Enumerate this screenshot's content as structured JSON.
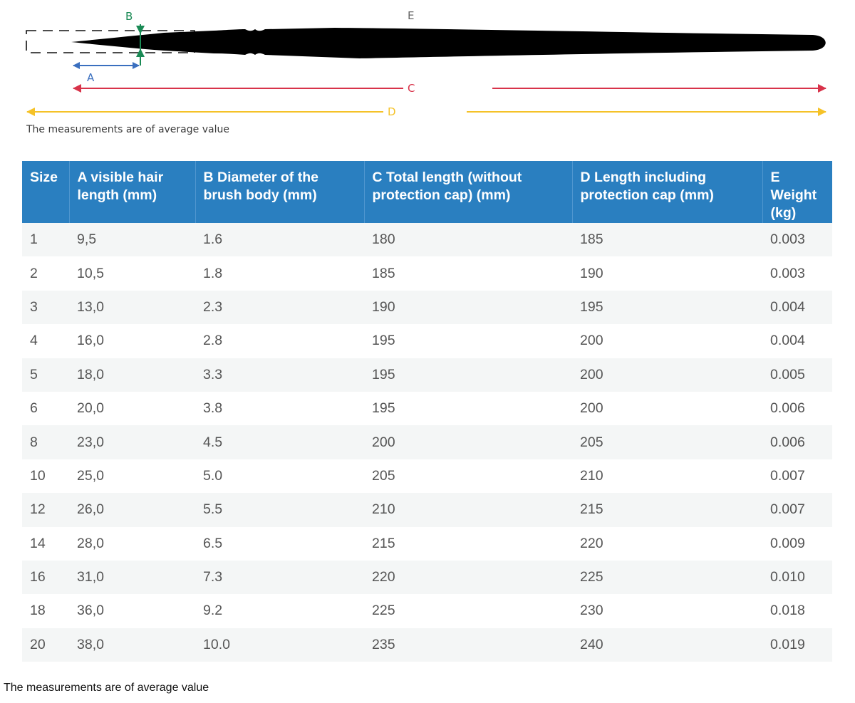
{
  "diagram": {
    "labels": {
      "a": "A",
      "b": "B",
      "c": "C",
      "d": "D",
      "e": "E"
    },
    "colors": {
      "brush": "#000000",
      "a_arrow": "#3a6fbf",
      "b_arrow": "#1a8a55",
      "c_arrow": "#d8334a",
      "d_arrow": "#f5c228",
      "e_label": "#666666"
    },
    "note": "The measurements are of average value"
  },
  "table": {
    "header_color": "#2a7fc0",
    "columns": [
      "Size",
      "A visible hair length (mm)",
      "B Diameter of the brush body (mm)",
      "C Total length (without protection cap) (mm)",
      "D Length including protection cap (mm)",
      "E Weight (kg)"
    ],
    "rows": [
      [
        "1",
        "9,5",
        "1.6",
        "180",
        "185",
        "0.003"
      ],
      [
        "2",
        "10,5",
        "1.8",
        "185",
        "190",
        "0.003"
      ],
      [
        "3",
        "13,0",
        "2.3",
        "190",
        "195",
        "0.004"
      ],
      [
        "4",
        "16,0",
        "2.8",
        "195",
        "200",
        "0.004"
      ],
      [
        "5",
        "18,0",
        "3.3",
        "195",
        "200",
        "0.005"
      ],
      [
        "6",
        "20,0",
        "3.8",
        "195",
        "200",
        "0.006"
      ],
      [
        "8",
        "23,0",
        "4.5",
        "200",
        "205",
        "0.006"
      ],
      [
        "10",
        "25,0",
        "5.0",
        "205",
        "210",
        "0.007"
      ],
      [
        "12",
        "26,0",
        "5.5",
        "210",
        "215",
        "0.007"
      ],
      [
        "14",
        "28,0",
        "6.5",
        "215",
        "220",
        "0.009"
      ],
      [
        "16",
        "31,0",
        "7.3",
        "220",
        "225",
        "0.010"
      ],
      [
        "18",
        "36,0",
        "9.2",
        "225",
        "230",
        "0.018"
      ],
      [
        "20",
        "38,0",
        "10.0",
        "235",
        "240",
        "0.019"
      ]
    ]
  },
  "footer": {
    "note": "The measurements are of average value"
  }
}
